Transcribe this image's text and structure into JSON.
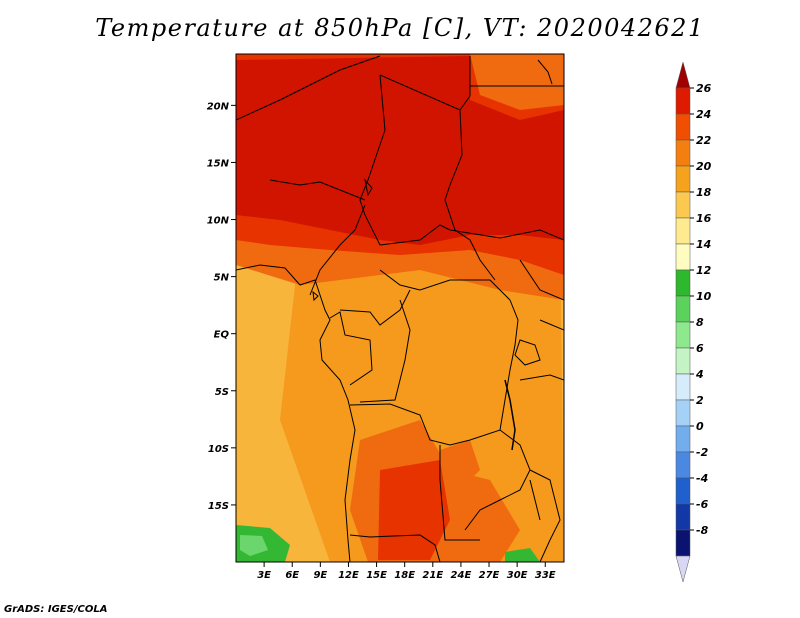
{
  "title": "Temperature at 850hPa [C], VT: 2020042621",
  "credit": "GrADS: IGES/COLA",
  "map": {
    "lat_labels": [
      "20N",
      "15N",
      "10N",
      "5N",
      "EQ",
      "5S",
      "10S",
      "15S"
    ],
    "lat_values": [
      20,
      15,
      10,
      5,
      0,
      -5,
      -10,
      -15
    ],
    "lon_labels": [
      "3E",
      "6E",
      "9E",
      "12E",
      "15E",
      "18E",
      "21E",
      "24E",
      "27E",
      "30E",
      "33E"
    ],
    "lon_values": [
      3,
      6,
      9,
      12,
      15,
      18,
      21,
      24,
      27,
      30,
      33
    ],
    "extent": {
      "lon_min": 0,
      "lon_max": 35,
      "lat_min": -20,
      "lat_max": 24.5
    }
  },
  "colorbar": {
    "labels": [
      "26",
      "24",
      "22",
      "20",
      "18",
      "16",
      "14",
      "12",
      "10",
      "8",
      "6",
      "4",
      "2",
      "0",
      "-2",
      "-4",
      "-6",
      "-8"
    ],
    "colors": [
      "#a00000",
      "#de1a00",
      "#f04e00",
      "#f47f0e",
      "#f5a31d",
      "#fbc94f",
      "#feeb90",
      "#fffcc2",
      "#2db82d",
      "#5bd25b",
      "#8ee88e",
      "#c4f4c4",
      "#d7ecfa",
      "#a6d1f6",
      "#72aeee",
      "#4a88e2",
      "#2060cc",
      "#1238a8",
      "#0a1470",
      "#d8d8f4"
    ]
  },
  "colors": {
    "t26": "#d11400",
    "t24": "#e63300",
    "t22": "#f06a10",
    "t20": "#f59a1c",
    "t18": "#f8b53c",
    "t12": "#34b834",
    "t10": "#6bd66b",
    "border": "#000000"
  }
}
